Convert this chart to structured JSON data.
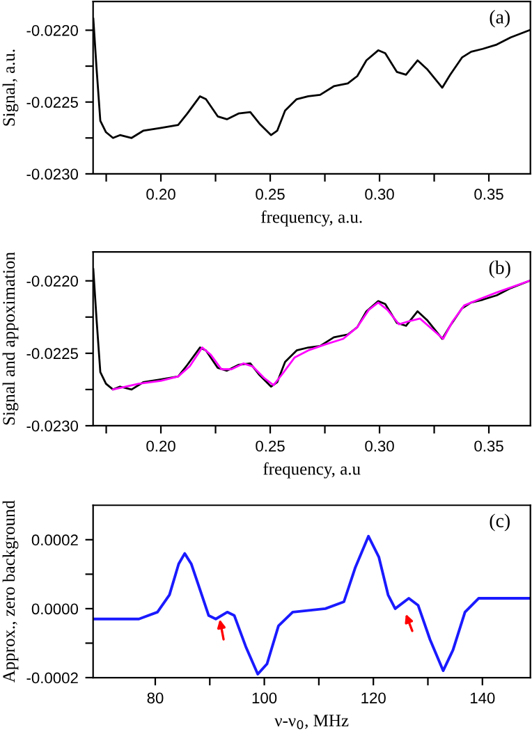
{
  "chart_data": [
    {
      "type": "line",
      "xlabel": "frequency, a.u.",
      "ylabel": "Signal, a.u.",
      "annotations": [
        "(a)"
      ],
      "grid": false,
      "legend": false,
      "xlim": [
        0.169,
        0.369
      ],
      "ylim": [
        -0.023,
        -0.0218
      ],
      "xticks": [
        {
          "value": 0.175,
          "label": null
        },
        {
          "value": 0.2,
          "label": "0.20"
        },
        {
          "value": 0.225,
          "label": null
        },
        {
          "value": 0.25,
          "label": "0.25"
        },
        {
          "value": 0.275,
          "label": null
        },
        {
          "value": 0.3,
          "label": "0.30"
        },
        {
          "value": 0.325,
          "label": null
        },
        {
          "value": 0.35,
          "label": "0.35"
        }
      ],
      "yticks": [
        {
          "value": -0.023,
          "label": "-0.0230"
        },
        {
          "value": -0.02275,
          "label": null
        },
        {
          "value": -0.0225,
          "label": "-0.0225"
        },
        {
          "value": -0.02225,
          "label": null
        },
        {
          "value": -0.022,
          "label": "-0.0220"
        }
      ],
      "series": [
        {
          "color": "#000000",
          "x": [
            0.1691,
            0.1706,
            0.1723,
            0.1749,
            0.1781,
            0.1813,
            0.1866,
            0.1919,
            0.2,
            0.2079,
            0.2121,
            0.2179,
            0.2206,
            0.226,
            0.2302,
            0.2355,
            0.2409,
            0.2451,
            0.2504,
            0.2532,
            0.2568,
            0.2621,
            0.2674,
            0.2728,
            0.2791,
            0.2855,
            0.2898,
            0.294,
            0.2994,
            0.3026,
            0.3079,
            0.3121,
            0.3174,
            0.3217,
            0.3287,
            0.3323,
            0.3377,
            0.3419,
            0.3472,
            0.3536,
            0.36,
            0.3685
          ],
          "values": [
            -0.02192,
            -0.02227,
            -0.02263,
            -0.02271,
            -0.02275,
            -0.02273,
            -0.02275,
            -0.0227,
            -0.02268,
            -0.02266,
            -0.02258,
            -0.02246,
            -0.02248,
            -0.0226,
            -0.02262,
            -0.02258,
            -0.02257,
            -0.02265,
            -0.02273,
            -0.0227,
            -0.02256,
            -0.02248,
            -0.02246,
            -0.02245,
            -0.02239,
            -0.02237,
            -0.02232,
            -0.02221,
            -0.02214,
            -0.02216,
            -0.02229,
            -0.02231,
            -0.02221,
            -0.02227,
            -0.0224,
            -0.02231,
            -0.02219,
            -0.02215,
            -0.02213,
            -0.0221,
            -0.02205,
            -0.022
          ]
        }
      ]
    },
    {
      "type": "line",
      "xlabel": "frequency, a.u",
      "ylabel": "Signal and appoximation",
      "annotations": [
        "(b)"
      ],
      "grid": false,
      "legend": false,
      "xlim": [
        0.169,
        0.369
      ],
      "ylim": [
        -0.023,
        -0.0218
      ],
      "xticks": [
        {
          "value": 0.175,
          "label": null
        },
        {
          "value": 0.2,
          "label": "0.20"
        },
        {
          "value": 0.225,
          "label": null
        },
        {
          "value": 0.25,
          "label": "0.25"
        },
        {
          "value": 0.275,
          "label": null
        },
        {
          "value": 0.3,
          "label": "0.30"
        },
        {
          "value": 0.325,
          "label": null
        },
        {
          "value": 0.35,
          "label": "0.35"
        }
      ],
      "yticks": [
        {
          "value": -0.023,
          "label": "-0.0230"
        },
        {
          "value": -0.02275,
          "label": null
        },
        {
          "value": -0.0225,
          "label": "-0.0225"
        },
        {
          "value": -0.02225,
          "label": null
        },
        {
          "value": -0.022,
          "label": "-0.0220"
        }
      ],
      "series": [
        {
          "color": "#000000",
          "x": [
            0.1691,
            0.1706,
            0.1723,
            0.1749,
            0.1781,
            0.1813,
            0.1866,
            0.1919,
            0.2,
            0.2079,
            0.2121,
            0.2179,
            0.2206,
            0.226,
            0.2302,
            0.2355,
            0.2409,
            0.2451,
            0.2504,
            0.2532,
            0.2568,
            0.2621,
            0.2674,
            0.2728,
            0.2791,
            0.2855,
            0.2898,
            0.294,
            0.2994,
            0.3026,
            0.3079,
            0.3121,
            0.3174,
            0.3217,
            0.3287,
            0.3323,
            0.3377,
            0.3419,
            0.3472,
            0.3536,
            0.36,
            0.3685
          ],
          "values": [
            -0.02192,
            -0.02227,
            -0.02263,
            -0.02271,
            -0.02275,
            -0.02273,
            -0.02275,
            -0.0227,
            -0.02268,
            -0.02266,
            -0.02258,
            -0.02246,
            -0.02248,
            -0.0226,
            -0.02262,
            -0.02258,
            -0.02257,
            -0.02265,
            -0.02273,
            -0.0227,
            -0.02256,
            -0.02248,
            -0.02246,
            -0.02245,
            -0.02239,
            -0.02237,
            -0.02232,
            -0.02221,
            -0.02214,
            -0.02216,
            -0.02229,
            -0.02231,
            -0.02221,
            -0.02227,
            -0.0224,
            -0.02231,
            -0.02219,
            -0.02215,
            -0.02213,
            -0.0221,
            -0.02205,
            -0.022
          ]
        },
        {
          "color": "#ff00ff",
          "x": [
            0.1781,
            0.1898,
            0.2,
            0.2079,
            0.2132,
            0.2189,
            0.2228,
            0.2277,
            0.2323,
            0.2377,
            0.2419,
            0.2472,
            0.2515,
            0.2557,
            0.2611,
            0.2674,
            0.2749,
            0.2834,
            0.2898,
            0.2951,
            0.2994,
            0.3036,
            0.3089,
            0.3132,
            0.3185,
            0.3238,
            0.3291,
            0.3334,
            0.3387,
            0.3451,
            0.3536,
            0.3685
          ],
          "values": [
            -0.02275,
            -0.02271,
            -0.02269,
            -0.02266,
            -0.02259,
            -0.02246,
            -0.02251,
            -0.02261,
            -0.02261,
            -0.02257,
            -0.02259,
            -0.02267,
            -0.02272,
            -0.02264,
            -0.02253,
            -0.02248,
            -0.02244,
            -0.0224,
            -0.02232,
            -0.0222,
            -0.02215,
            -0.0222,
            -0.0223,
            -0.02228,
            -0.02226,
            -0.02233,
            -0.0224,
            -0.02228,
            -0.02217,
            -0.02213,
            -0.02208,
            -0.022
          ]
        }
      ]
    },
    {
      "type": "line",
      "xlabel": "ν-ν$_{0}$, MHz",
      "ylabel": "Approx., zero background",
      "annotations": [
        "(c)"
      ],
      "grid": false,
      "legend": false,
      "xlim": [
        68.6,
        148.8
      ],
      "ylim": [
        -0.0002,
        0.0003
      ],
      "xticks": [
        {
          "value": 80,
          "label": "80"
        },
        {
          "value": 90,
          "label": null
        },
        {
          "value": 100,
          "label": "100"
        },
        {
          "value": 110,
          "label": null
        },
        {
          "value": 120,
          "label": "120"
        },
        {
          "value": 130,
          "label": null
        },
        {
          "value": 140,
          "label": "140"
        }
      ],
      "yticks": [
        {
          "value": -0.0002,
          "label": "-0.0002"
        },
        {
          "value": -0.0001,
          "label": null
        },
        {
          "value": 0.0,
          "label": "0.0000"
        },
        {
          "value": 0.0001,
          "label": null
        },
        {
          "value": 0.0002,
          "label": "0.0002"
        }
      ],
      "series": [
        {
          "color": "#1a1aff",
          "x": [
            68.9,
            77.0,
            80.4,
            82.6,
            84.3,
            85.4,
            86.6,
            88.1,
            89.8,
            91.1,
            93.2,
            94.5,
            96.6,
            98.8,
            100.5,
            102.6,
            105.2,
            111.2,
            114.6,
            116.7,
            119.1,
            121.0,
            122.7,
            124.0,
            126.5,
            128.2,
            130.4,
            132.8,
            134.6,
            136.8,
            139.3,
            143.6,
            148.8
          ],
          "values": [
            -3e-05,
            -3e-05,
            -1e-05,
            4e-05,
            0.00013,
            0.00016,
            0.00013,
            6e-05,
            -2e-05,
            -3e-05,
            -1e-05,
            -2e-05,
            -0.00011,
            -0.00019,
            -0.00016,
            -5e-05,
            -1e-05,
            0.0,
            2e-05,
            0.00012,
            0.00021,
            0.00015,
            4e-05,
            0.0,
            3e-05,
            1e-05,
            -9e-05,
            -0.00018,
            -0.00012,
            -1e-05,
            3e-05,
            3e-05,
            3e-05
          ]
        }
      ]
    }
  ]
}
